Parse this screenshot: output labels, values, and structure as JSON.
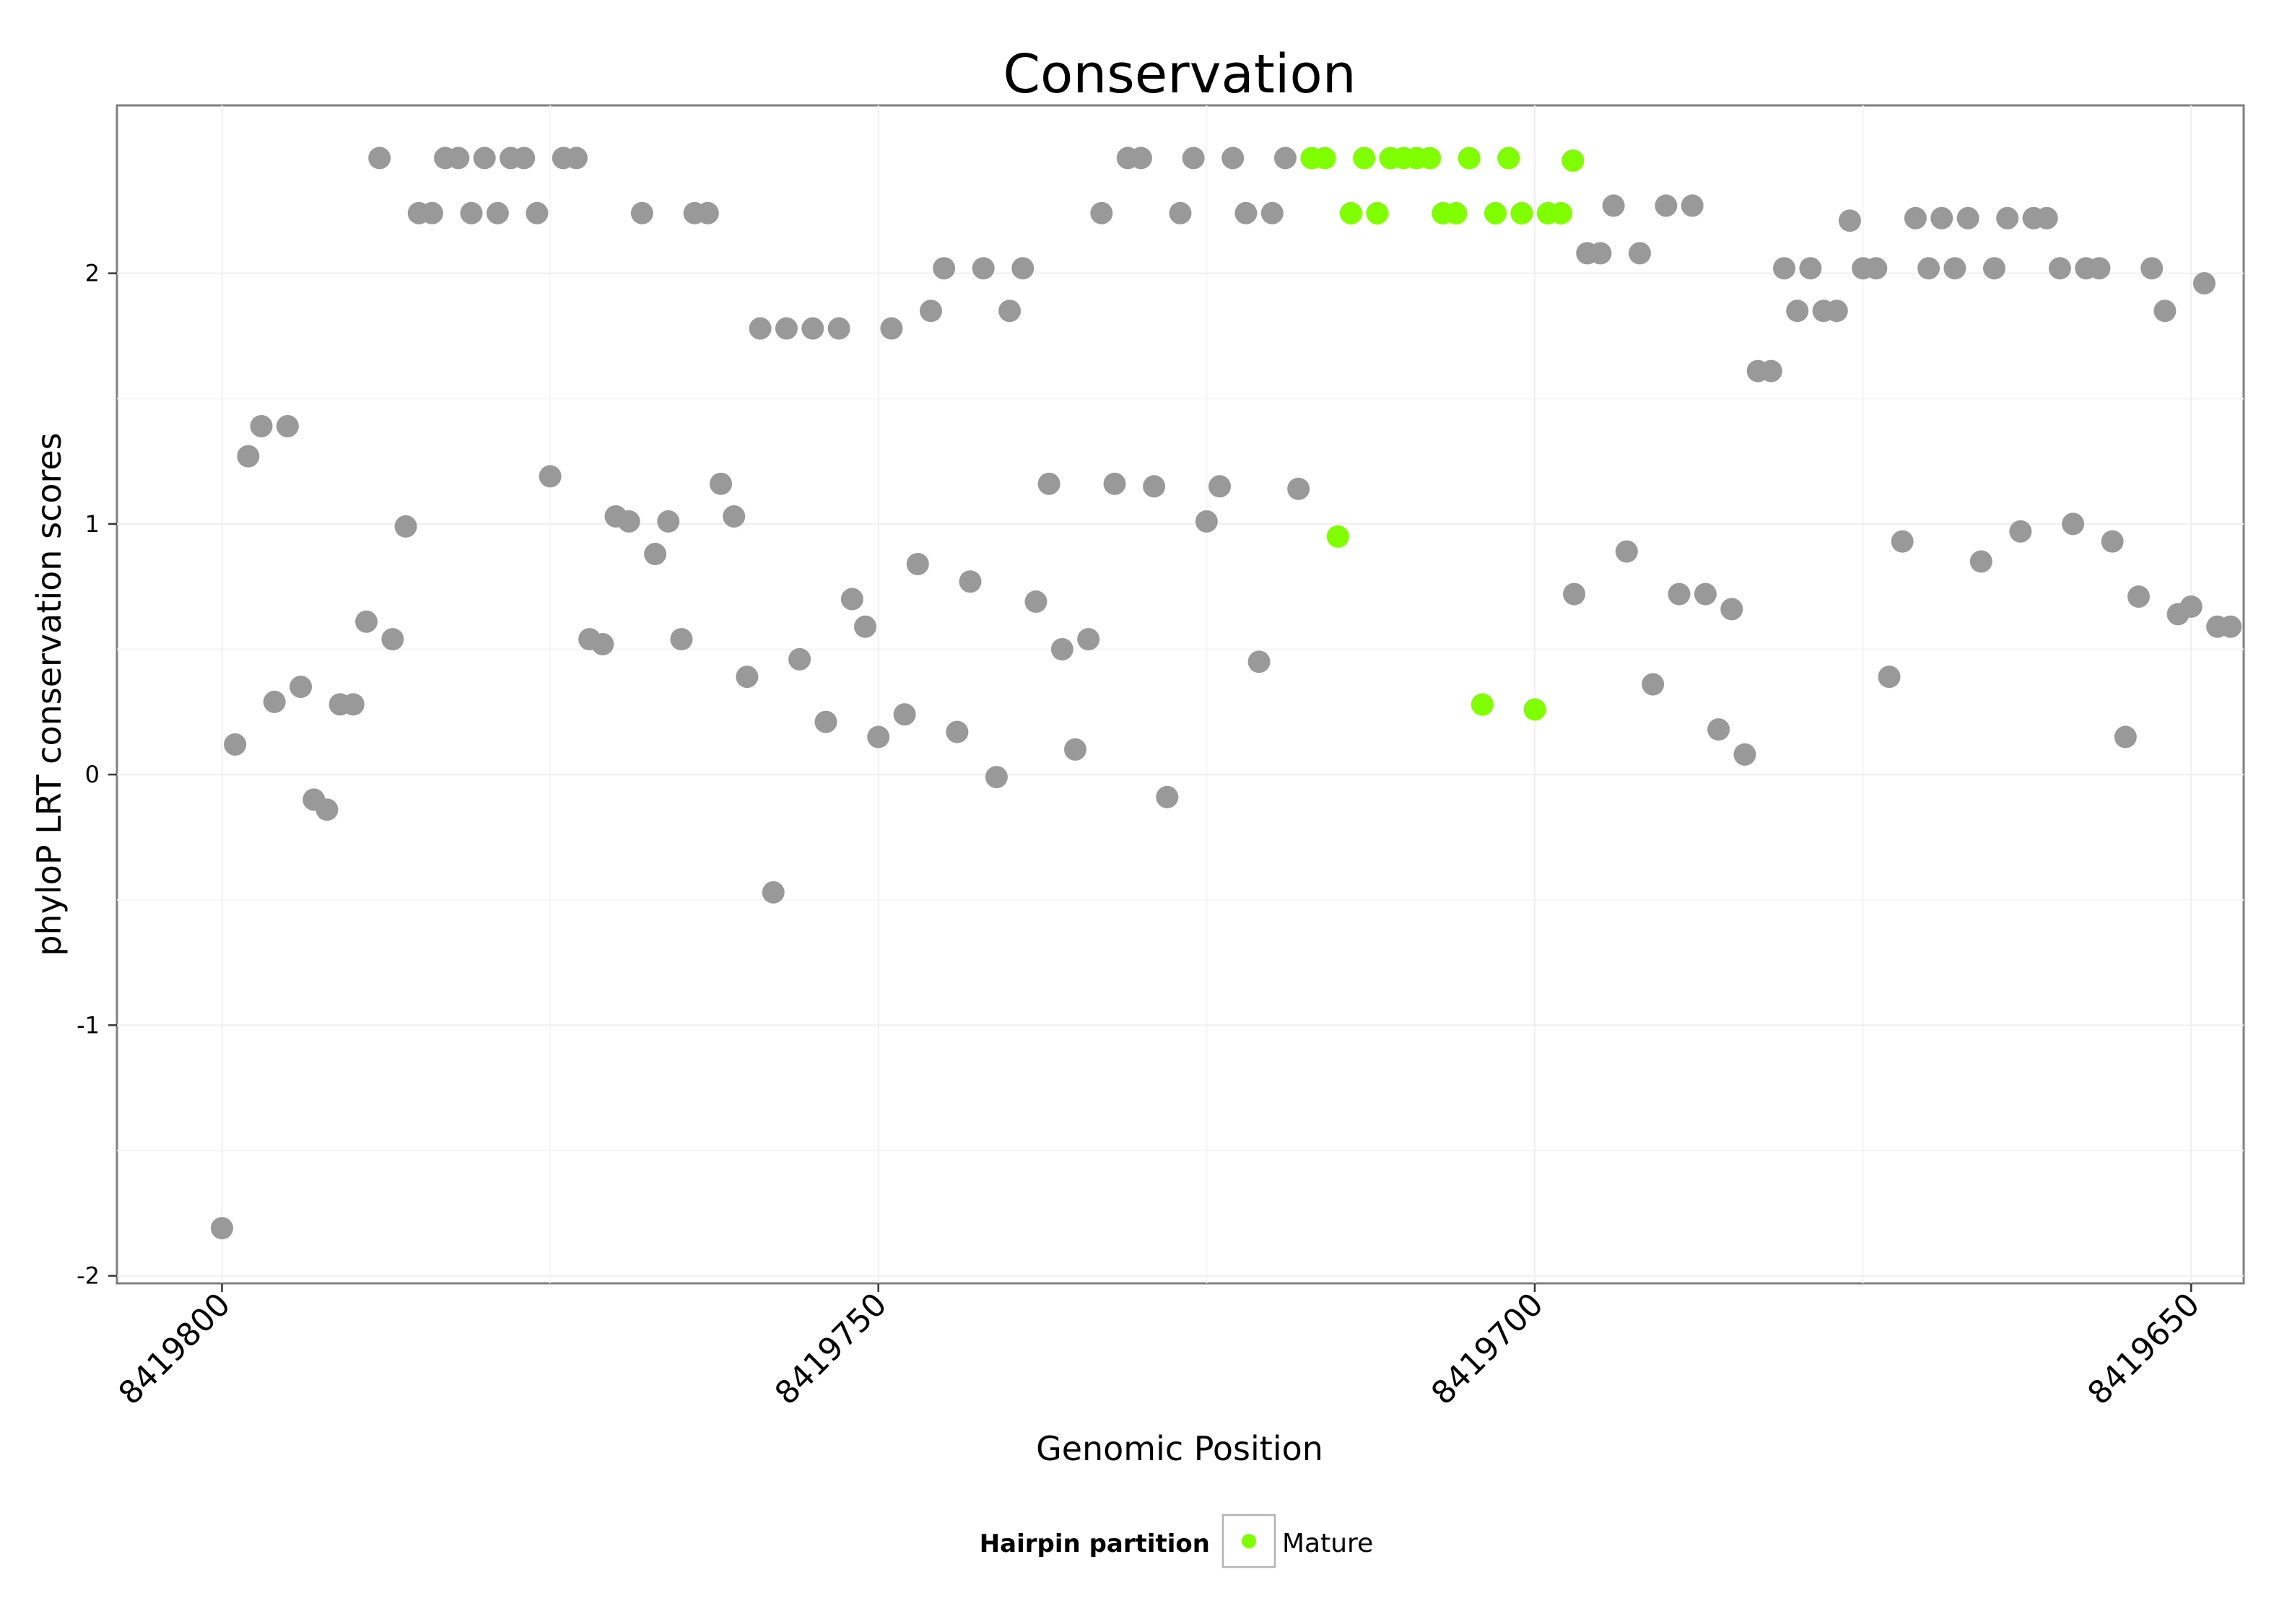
{
  "chart_data": {
    "type": "scatter",
    "title": "Conservation",
    "xlabel": "Genomic Position",
    "ylabel": "phyloP LRT conservation scores",
    "x_reversed": true,
    "xlim": [
      8419646,
      8419808
    ],
    "ylim": [
      -2.03,
      2.67
    ],
    "x_ticks": [
      8419800,
      8419750,
      8419700,
      8419650
    ],
    "y_ticks": [
      -2,
      -1,
      0,
      1,
      2
    ],
    "grid": true,
    "legend": {
      "title": "Hairpin partition",
      "position": "bottom",
      "entries": [
        {
          "label": "Mature",
          "color": "#7fff00"
        }
      ]
    },
    "colors": {
      "other": "#999999",
      "mature": "#7fff00"
    },
    "series": [
      {
        "group": "other",
        "points": [
          [
            8419800,
            -1.81
          ],
          [
            8419799,
            0.12
          ],
          [
            8419798,
            1.27
          ],
          [
            8419797,
            1.39
          ],
          [
            8419796,
            0.29
          ],
          [
            8419795,
            1.39
          ],
          [
            8419794,
            0.35
          ],
          [
            8419793,
            -0.1
          ],
          [
            8419792,
            -0.14
          ],
          [
            8419791,
            0.28
          ],
          [
            8419790,
            0.28
          ],
          [
            8419789,
            0.61
          ],
          [
            8419788,
            2.46
          ],
          [
            8419787,
            0.54
          ],
          [
            8419786,
            0.99
          ],
          [
            8419785,
            2.24
          ],
          [
            8419784,
            2.24
          ],
          [
            8419783,
            2.46
          ],
          [
            8419782,
            2.46
          ],
          [
            8419781,
            2.24
          ],
          [
            8419780,
            2.46
          ],
          [
            8419779,
            2.24
          ],
          [
            8419778,
            2.46
          ],
          [
            8419777,
            2.46
          ],
          [
            8419776,
            2.24
          ],
          [
            8419775,
            1.19
          ],
          [
            8419774,
            2.46
          ],
          [
            8419773,
            2.46
          ],
          [
            8419772,
            0.54
          ],
          [
            8419771,
            0.52
          ],
          [
            8419770,
            1.03
          ],
          [
            8419769,
            1.01
          ],
          [
            8419768,
            2.24
          ],
          [
            8419767,
            0.88
          ],
          [
            8419766,
            1.01
          ],
          [
            8419765,
            0.54
          ],
          [
            8419764,
            2.24
          ],
          [
            8419763,
            2.24
          ],
          [
            8419762,
            1.16
          ],
          [
            8419761,
            1.03
          ],
          [
            8419760,
            0.39
          ],
          [
            8419759,
            1.78
          ],
          [
            8419758,
            -0.47
          ],
          [
            8419757,
            1.78
          ],
          [
            8419756,
            0.46
          ],
          [
            8419755,
            1.78
          ],
          [
            8419754,
            0.21
          ],
          [
            8419753,
            1.78
          ],
          [
            8419752,
            0.7
          ],
          [
            8419751,
            0.59
          ],
          [
            8419750,
            0.15
          ],
          [
            8419749,
            1.78
          ],
          [
            8419748,
            0.24
          ],
          [
            8419747,
            0.84
          ],
          [
            8419746,
            1.85
          ],
          [
            8419745,
            2.02
          ],
          [
            8419744,
            0.17
          ],
          [
            8419743,
            0.77
          ],
          [
            8419742,
            2.02
          ],
          [
            8419741,
            -0.01
          ],
          [
            8419740,
            1.85
          ],
          [
            8419739,
            2.02
          ],
          [
            8419738,
            0.69
          ],
          [
            8419737,
            1.16
          ],
          [
            8419736,
            0.5
          ],
          [
            8419735,
            0.1
          ],
          [
            8419734,
            0.54
          ],
          [
            8419733,
            2.24
          ],
          [
            8419732,
            1.16
          ],
          [
            8419731,
            2.46
          ],
          [
            8419730,
            2.46
          ],
          [
            8419729,
            1.15
          ],
          [
            8419728,
            -0.09
          ],
          [
            8419727,
            2.24
          ],
          [
            8419726,
            2.46
          ],
          [
            8419725,
            1.01
          ],
          [
            8419724,
            1.15
          ],
          [
            8419723,
            2.46
          ],
          [
            8419722,
            2.24
          ],
          [
            8419721,
            0.45
          ],
          [
            8419720,
            2.24
          ],
          [
            8419719,
            2.46
          ],
          [
            8419718,
            1.14
          ],
          [
            8419697,
            0.72
          ],
          [
            8419696,
            2.08
          ],
          [
            8419695,
            2.08
          ],
          [
            8419694,
            2.27
          ],
          [
            8419693,
            0.89
          ],
          [
            8419692,
            2.08
          ],
          [
            8419691,
            0.36
          ],
          [
            8419690,
            2.27
          ],
          [
            8419689,
            0.72
          ],
          [
            8419688,
            2.27
          ],
          [
            8419687,
            0.72
          ],
          [
            8419686,
            0.18
          ],
          [
            8419685,
            0.66
          ],
          [
            8419684,
            0.08
          ],
          [
            8419683,
            1.61
          ],
          [
            8419682,
            1.61
          ],
          [
            8419681,
            2.02
          ],
          [
            8419680,
            1.85
          ],
          [
            8419679,
            2.02
          ],
          [
            8419678,
            1.85
          ],
          [
            8419677,
            1.85
          ],
          [
            8419676,
            2.21
          ],
          [
            8419675,
            2.02
          ],
          [
            8419674,
            2.02
          ],
          [
            8419673,
            0.39
          ],
          [
            8419672,
            0.93
          ],
          [
            8419671,
            2.22
          ],
          [
            8419670,
            2.02
          ],
          [
            8419669,
            2.22
          ],
          [
            8419668,
            2.02
          ],
          [
            8419667,
            2.22
          ],
          [
            8419666,
            0.85
          ],
          [
            8419665,
            2.02
          ],
          [
            8419664,
            2.22
          ],
          [
            8419663,
            0.97
          ],
          [
            8419662,
            2.22
          ],
          [
            8419661,
            2.22
          ],
          [
            8419660,
            2.02
          ],
          [
            8419659,
            1.0
          ],
          [
            8419658,
            2.02
          ],
          [
            8419657,
            2.02
          ],
          [
            8419656,
            0.93
          ],
          [
            8419655,
            0.15
          ],
          [
            8419654,
            0.71
          ],
          [
            8419653,
            2.02
          ],
          [
            8419652,
            1.85
          ],
          [
            8419651,
            0.64
          ],
          [
            8419650,
            0.67
          ],
          [
            8419649,
            1.96
          ],
          [
            8419648,
            0.59
          ],
          [
            8419647,
            0.59
          ]
        ]
      },
      {
        "group": "mature",
        "name": "Mature",
        "points": [
          [
            8419717,
            2.46
          ],
          [
            8419716,
            2.46
          ],
          [
            8419715,
            0.95
          ],
          [
            8419714,
            2.24
          ],
          [
            8419713,
            2.46
          ],
          [
            8419712,
            2.24
          ],
          [
            8419711,
            2.46
          ],
          [
            8419710,
            2.46
          ],
          [
            8419709,
            2.46
          ],
          [
            8419708,
            2.46
          ],
          [
            8419707,
            2.24
          ],
          [
            8419706,
            2.24
          ],
          [
            8419705,
            2.46
          ],
          [
            8419704,
            0.28
          ],
          [
            8419703,
            2.24
          ],
          [
            8419702,
            2.46
          ],
          [
            8419701,
            2.24
          ],
          [
            8419700,
            0.26
          ],
          [
            8419699,
            2.24
          ],
          [
            8419698,
            2.24
          ],
          [
            8419697.1,
            2.45
          ]
        ]
      }
    ]
  }
}
